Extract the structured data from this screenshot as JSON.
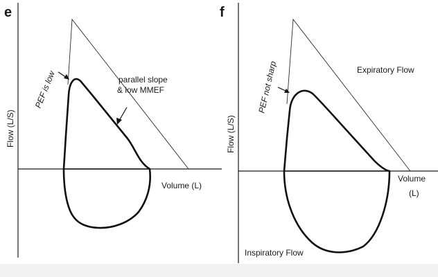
{
  "panels": [
    {
      "letter": "e",
      "y_axis_label": "Flow (L/S)",
      "x_axis_label": "Volume (L)",
      "annotation_pef": "PEF is low",
      "annotation_slope_line1": "parallel slope",
      "annotation_slope_line2": "& low MMEF"
    },
    {
      "letter": "f",
      "y_axis_label": "Flow (L/S)",
      "x_axis_label_line1": "Volume",
      "x_axis_label_line2": "(L)",
      "annotation_pef": "PEF not sharp",
      "annotation_expiratory": "Expiratory Flow",
      "annotation_inspiratory": "Inspiratory Flow"
    }
  ]
}
